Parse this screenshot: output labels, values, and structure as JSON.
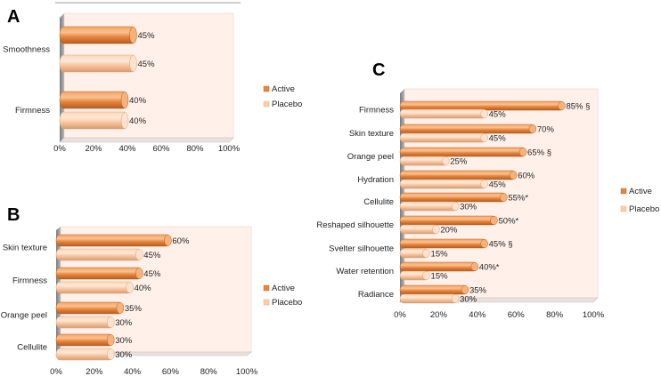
{
  "colors": {
    "active": "#e7853e",
    "active_light": "#f7b27b",
    "active_dark": "#b85f20",
    "placebo": "#fbceaa",
    "placebo_light": "#fde3cd",
    "placebo_dark": "#d9a07c",
    "wall": "#fff1ea",
    "wall_side": "#8a8a8a"
  },
  "chart_data": [
    {
      "panel": "A",
      "type": "bar",
      "orientation": "horizontal",
      "categories": [
        "Smoothness",
        "Firmness"
      ],
      "series": [
        {
          "name": "Active",
          "values": [
            45,
            40
          ],
          "labels": [
            "45%",
            "40%"
          ]
        },
        {
          "name": "Placebo",
          "values": [
            45,
            40
          ],
          "labels": [
            "45%",
            "40%"
          ]
        }
      ],
      "xlim": [
        0,
        100
      ],
      "xticks": [
        "0%",
        "20%",
        "40%",
        "60%",
        "80%",
        "100%"
      ],
      "legend": [
        "Active",
        "Placebo"
      ],
      "legend_position": "right"
    },
    {
      "panel": "B",
      "type": "bar",
      "orientation": "horizontal",
      "categories": [
        "Skin texture",
        "Firmness",
        "Orange peel",
        "Cellulite"
      ],
      "series": [
        {
          "name": "Active",
          "values": [
            60,
            45,
            35,
            30
          ],
          "labels": [
            "60%",
            "45%",
            "35%",
            "30%"
          ]
        },
        {
          "name": "Placebo",
          "values": [
            45,
            40,
            30,
            30
          ],
          "labels": [
            "45%",
            "40%",
            "30%",
            "30%"
          ]
        }
      ],
      "xlim": [
        0,
        100
      ],
      "xticks": [
        "0%",
        "20%",
        "40%",
        "60%",
        "80%",
        "100%"
      ],
      "legend": [
        "Active",
        "Placebo"
      ],
      "legend_position": "right"
    },
    {
      "panel": "C",
      "type": "bar",
      "orientation": "horizontal",
      "categories": [
        "Firmness",
        "Skin texture",
        "Orange peel",
        "Hydration",
        "Cellulite",
        "Reshaped silhouette",
        "Svelter silhouette",
        "Water retention",
        "Radiance"
      ],
      "series": [
        {
          "name": "Active",
          "values": [
            85,
            70,
            65,
            60,
            55,
            50,
            45,
            40,
            35
          ],
          "labels": [
            "85% §",
            "70%",
            "65% §",
            "60%",
            "55%*",
            "50%*",
            "45% §",
            "40%*",
            "35%"
          ]
        },
        {
          "name": "Placebo",
          "values": [
            45,
            45,
            25,
            45,
            30,
            20,
            15,
            15,
            30
          ],
          "labels": [
            "45%",
            "45%",
            "25%",
            "45%",
            "30%",
            "20%",
            "15%",
            "15%",
            "30%"
          ]
        }
      ],
      "xlim": [
        0,
        100
      ],
      "xticks": [
        "0%",
        "20%",
        "40%",
        "60%",
        "80%",
        "100%"
      ],
      "legend": [
        "Active",
        "Placebo"
      ],
      "legend_position": "right"
    }
  ]
}
